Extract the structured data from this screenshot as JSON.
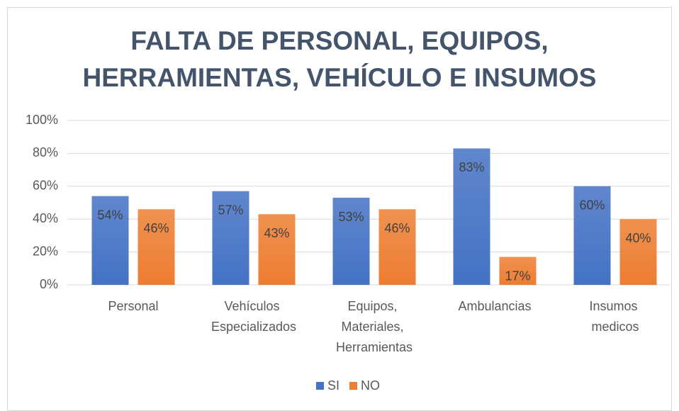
{
  "chart_data": {
    "type": "bar",
    "title": "FALTA DE PERSONAL, EQUIPOS, HERRAMIENTAS, VEHÍCULO E INSUMOS",
    "categories": [
      "Personal",
      "Vehículos Especializados",
      "Equipos, Materiales, Herramientas",
      "Ambulancias",
      "Insumos medicos"
    ],
    "series": [
      {
        "name": "SI",
        "color": "#4472c4",
        "values": [
          54,
          57,
          53,
          83,
          60
        ],
        "value_labels": [
          "54%",
          "57%",
          "53%",
          "83%",
          "60%"
        ]
      },
      {
        "name": "NO",
        "color": "#ed7d31",
        "values": [
          46,
          43,
          46,
          17,
          40
        ],
        "value_labels": [
          "46%",
          "43%",
          "46%",
          "17%",
          "40%"
        ]
      }
    ],
    "ylim": [
      0,
      100
    ],
    "yticks": [
      {
        "value": 0,
        "label": "0%"
      },
      {
        "value": 20,
        "label": "20%"
      },
      {
        "value": 40,
        "label": "40%"
      },
      {
        "value": 60,
        "label": "60%"
      },
      {
        "value": 80,
        "label": "80%"
      },
      {
        "value": 100,
        "label": "100%"
      }
    ],
    "grid": true,
    "legend": "bottom"
  }
}
